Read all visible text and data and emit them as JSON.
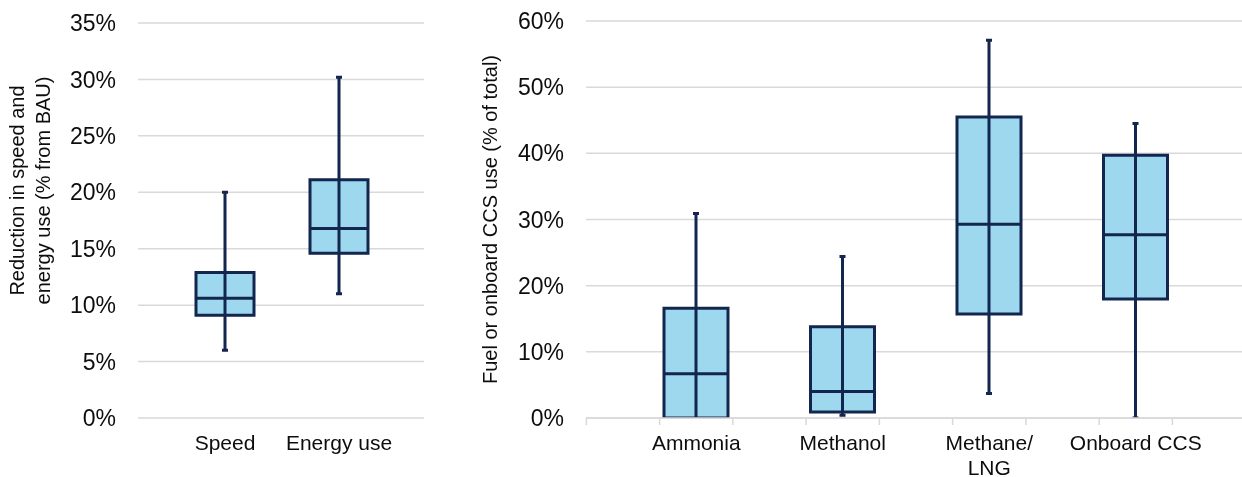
{
  "chart_data": [
    {
      "type": "box",
      "ylabel": "Reduction in speed and energy use (% from BAU)",
      "categories": [
        "Speed",
        "Energy use"
      ],
      "series": [
        {
          "color": "#9dd8ef",
          "boxes": [
            {
              "low": 6,
              "q1": 9.1,
              "median": 10.6,
              "q3": 12.9,
              "high": 20
            },
            {
              "low": 11,
              "q1": 14.6,
              "median": 16.8,
              "q3": 21.1,
              "high": 30.2
            }
          ]
        }
      ],
      "ylim": [
        0,
        35
      ],
      "yticks": [
        {
          "value": 0,
          "label": "0%"
        },
        {
          "value": 5,
          "label": "5%"
        },
        {
          "value": 10,
          "label": "10%"
        },
        {
          "value": 15,
          "label": "15%"
        },
        {
          "value": 20,
          "label": "20%"
        },
        {
          "value": 25,
          "label": "25%"
        },
        {
          "value": 30,
          "label": "30%"
        },
        {
          "value": 35,
          "label": "35%"
        }
      ],
      "grid": "y"
    },
    {
      "type": "box",
      "ylabel": "Fuel or onboard CCS use (% of total)",
      "categories": [
        "Ammonia",
        "Methanol",
        "Methane/\nLNG",
        "Onboard CCS"
      ],
      "series": [
        {
          "color": "#9dd8ef",
          "boxes": [
            {
              "low": 0,
              "q1": 0,
              "median": 6.7,
              "q3": 16.6,
              "high": 30.9
            },
            {
              "low": 0.4,
              "q1": 0.9,
              "median": 4,
              "q3": 13.8,
              "high": 24.4
            },
            {
              "low": 3.7,
              "q1": 15.7,
              "median": 29.3,
              "q3": 45.5,
              "high": 57.1
            },
            {
              "low": 0,
              "q1": 18,
              "median": 27.7,
              "q3": 39.7,
              "high": 44.5
            }
          ]
        }
      ],
      "ylim": [
        0,
        60
      ],
      "yticks": [
        {
          "value": 0,
          "label": "0%"
        },
        {
          "value": 10,
          "label": "10%"
        },
        {
          "value": 20,
          "label": "20%"
        },
        {
          "value": 30,
          "label": "30%"
        },
        {
          "value": 40,
          "label": "40%"
        },
        {
          "value": 50,
          "label": "50%"
        },
        {
          "value": 60,
          "label": "60%"
        }
      ],
      "grid": "y"
    }
  ]
}
